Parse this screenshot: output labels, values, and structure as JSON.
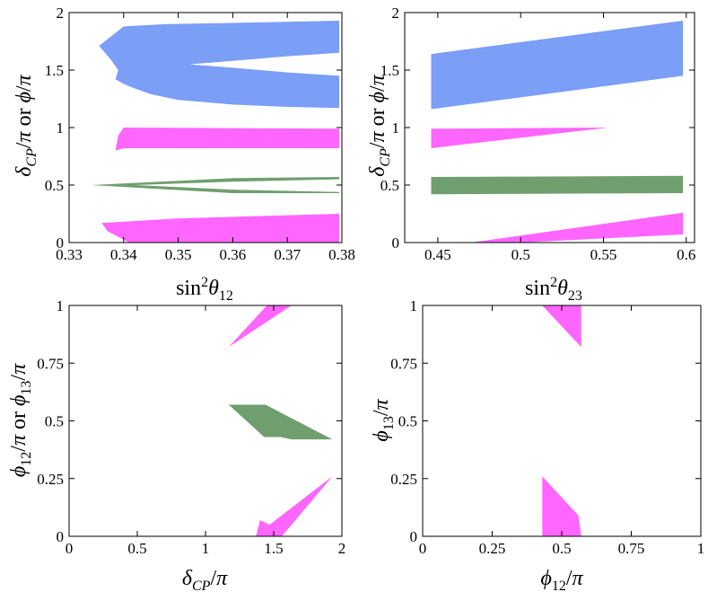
{
  "chart_data": [
    {
      "type": "area",
      "panel": "top-left",
      "xlabel": "sin²θ₁₂",
      "ylabel": "δ_CP/π or ϕ/π",
      "xlim": [
        0.33,
        0.38
      ],
      "ylim": [
        0,
        2
      ],
      "xticks": [
        "0.33",
        "0.34",
        "0.35",
        "0.36",
        "0.37",
        "0.38"
      ],
      "yticks": [
        "0",
        "0.5",
        "1",
        "1.5",
        "2"
      ],
      "series": [
        {
          "color": "#7b9ef6",
          "points": [
            [
              0.3355,
              1.71
            ],
            [
              0.34,
              1.88
            ],
            [
              0.348,
              1.9
            ],
            [
              0.36,
              1.91
            ],
            [
              0.37,
              1.92
            ],
            [
              0.3795,
              1.93
            ],
            [
              0.3795,
              1.65
            ],
            [
              0.37,
              1.62
            ],
            [
              0.36,
              1.58
            ],
            [
              0.352,
              1.55
            ],
            [
              0.36,
              1.52
            ],
            [
              0.37,
              1.48
            ],
            [
              0.3795,
              1.45
            ],
            [
              0.3795,
              1.17
            ],
            [
              0.37,
              1.18
            ],
            [
              0.36,
              1.2
            ],
            [
              0.35,
              1.24
            ],
            [
              0.345,
              1.29
            ],
            [
              0.3415,
              1.35
            ],
            [
              0.34,
              1.38
            ],
            [
              0.3385,
              1.42
            ],
            [
              0.339,
              1.5
            ],
            [
              0.3375,
              1.6
            ]
          ]
        },
        {
          "color": "#ff66ff",
          "points": [
            [
              0.339,
              0.93
            ],
            [
              0.34,
              1.0
            ],
            [
              0.3795,
              0.99
            ],
            [
              0.3795,
              0.82
            ],
            [
              0.34,
              0.82
            ],
            [
              0.3385,
              0.8
            ]
          ]
        },
        {
          "color": "#6f9f6f",
          "points": [
            [
              0.334,
              0.5
            ],
            [
              0.36,
              0.56
            ],
            [
              0.3795,
              0.57
            ],
            [
              0.3795,
              0.55
            ],
            [
              0.36,
              0.53
            ],
            [
              0.342,
              0.5
            ],
            [
              0.36,
              0.46
            ],
            [
              0.3795,
              0.44
            ],
            [
              0.3795,
              0.43
            ],
            [
              0.36,
              0.43
            ]
          ]
        },
        {
          "color": "#ff66ff",
          "points": [
            [
              0.336,
              0.17
            ],
            [
              0.35,
              0.21
            ],
            [
              0.3795,
              0.25
            ],
            [
              0.3795,
              0.0
            ],
            [
              0.341,
              0.0
            ],
            [
              0.339,
              0.05
            ],
            [
              0.337,
              0.1
            ]
          ]
        }
      ]
    },
    {
      "type": "area",
      "panel": "top-right",
      "xlabel": "sin²θ₂₃",
      "ylabel": "δ_CP/π or ϕ/π",
      "xlim": [
        0.43,
        0.605
      ],
      "ylim": [
        0,
        2
      ],
      "xticks": [
        "0.45",
        "0.5",
        "0.55",
        "0.6"
      ],
      "yticks": [
        "0",
        "0.5",
        "1",
        "1.5",
        "2"
      ],
      "series": [
        {
          "color": "#7b9ef6",
          "points": [
            [
              0.446,
              1.64
            ],
            [
              0.598,
              1.93
            ],
            [
              0.598,
              1.45
            ],
            [
              0.446,
              1.16
            ]
          ]
        },
        {
          "color": "#ff66ff",
          "points": [
            [
              0.446,
              0.99
            ],
            [
              0.553,
              1.0
            ],
            [
              0.446,
              0.82
            ]
          ]
        },
        {
          "color": "#6f9f6f",
          "points": [
            [
              0.446,
              0.57
            ],
            [
              0.598,
              0.58
            ],
            [
              0.598,
              0.43
            ],
            [
              0.446,
              0.42
            ]
          ]
        },
        {
          "color": "#ff66ff",
          "points": [
            [
              0.47,
              0.0
            ],
            [
              0.598,
              0.26
            ],
            [
              0.598,
              0.07
            ],
            [
              0.5,
              0.0
            ]
          ]
        }
      ]
    },
    {
      "type": "area",
      "panel": "bottom-left",
      "xlabel": "δ_CP/π",
      "ylabel": "ϕ₁₂/π or ϕ₁₃/π",
      "xlim": [
        0,
        2
      ],
      "ylim": [
        0,
        1
      ],
      "xticks": [
        "0",
        "0.5",
        "1",
        "1.5",
        "2"
      ],
      "yticks": [
        "0",
        "0.25",
        "0.5",
        "0.75",
        "1"
      ],
      "series": [
        {
          "color": "#ff66ff",
          "points": [
            [
              1.45,
              1.0
            ],
            [
              1.63,
              1.0
            ],
            [
              1.17,
              0.82
            ]
          ]
        },
        {
          "color": "#6f9f6f",
          "points": [
            [
              1.17,
              0.57
            ],
            [
              1.44,
              0.57
            ],
            [
              1.93,
              0.42
            ],
            [
              1.63,
              0.42
            ],
            [
              1.55,
              0.43
            ],
            [
              1.43,
              0.43
            ]
          ]
        },
        {
          "color": "#ff66ff",
          "points": [
            [
              1.37,
              0.0
            ],
            [
              1.56,
              0.0
            ],
            [
              1.93,
              0.26
            ],
            [
              1.47,
              0.05
            ],
            [
              1.4,
              0.07
            ]
          ]
        }
      ]
    },
    {
      "type": "area",
      "panel": "bottom-right",
      "xlabel": "ϕ₁₂/π",
      "ylabel": "ϕ₁₃/π",
      "xlim": [
        0,
        1
      ],
      "ylim": [
        0,
        1
      ],
      "xticks": [
        "0",
        "0.25",
        "0.5",
        "0.75",
        "1"
      ],
      "yticks": [
        "0",
        "0.25",
        "0.5",
        "0.75",
        "1"
      ],
      "series": [
        {
          "color": "#ff66ff",
          "points": [
            [
              0.43,
              1.0
            ],
            [
              0.57,
              1.0
            ],
            [
              0.57,
              0.82
            ]
          ]
        },
        {
          "color": "#ff66ff",
          "points": [
            [
              0.43,
              0.26
            ],
            [
              0.56,
              0.09
            ],
            [
              0.57,
              0.0
            ],
            [
              0.43,
              0.0
            ]
          ]
        }
      ]
    }
  ]
}
